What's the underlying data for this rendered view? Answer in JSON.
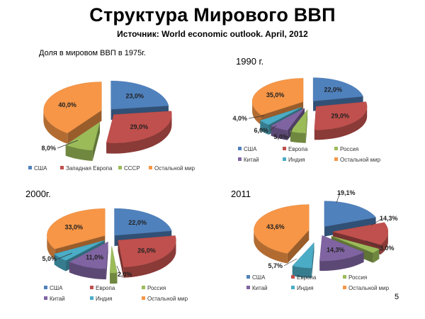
{
  "title": "Структура Мирового ВВП",
  "subtitle": "Источник: World economic outlook. April, 2012",
  "page_number": "5",
  "colors": {
    "usa": "#4F81BD",
    "europe": "#C0504D",
    "russia": "#9BBB59",
    "china": "#8064A2",
    "india": "#4BACC6",
    "rest": "#F79646"
  },
  "panels": [
    {
      "label": "Доля в мировом ВВП в 1975г."
    },
    {
      "label": "1990 г."
    },
    {
      "label": "2000г."
    },
    {
      "label": "2011"
    }
  ],
  "chart_data": [
    {
      "type": "pie",
      "title": "Доля в мировом ВВП в 1975г.",
      "categories": [
        "США",
        "Западная Европа",
        "СССР",
        "Остальной мир"
      ],
      "values": [
        23.0,
        29.0,
        8.0,
        40.0
      ],
      "data_labels": [
        "23,0%",
        "29,0%",
        "8,0%",
        "40,0%"
      ],
      "legend": "bottom"
    },
    {
      "type": "pie",
      "title": "1990 г.",
      "categories": [
        "США",
        "Европа",
        "Россия",
        "Китай",
        "Индия",
        "Остальной мир"
      ],
      "values": [
        22.0,
        29.0,
        5.0,
        6.0,
        4.0,
        35.0
      ],
      "data_labels": [
        "22,0%",
        "29,0%",
        "5,0%",
        "6,0%",
        "4,0%",
        "35,0%"
      ],
      "legend": "bottom"
    },
    {
      "type": "pie",
      "title": "2000г.",
      "categories": [
        "США",
        "Европа",
        "Россия",
        "Китай",
        "Индия",
        "Остальной мир"
      ],
      "values": [
        22.0,
        26.0,
        2.0,
        11.0,
        5.0,
        33.0
      ],
      "data_labels": [
        "22,0%",
        "26,0%",
        "2,0%",
        "11,0%",
        "5,0%",
        "33,0%"
      ],
      "legend": "bottom"
    },
    {
      "type": "pie",
      "title": "2011",
      "categories": [
        "США",
        "Европа",
        "Россия",
        "Китай",
        "Индия",
        "Остальной мир"
      ],
      "values": [
        19.1,
        14.3,
        3.0,
        14.3,
        5.7,
        43.6
      ],
      "data_labels": [
        "19,1%",
        "14,3%",
        "3,0%",
        "14,3%",
        "5,7%",
        "43,6%"
      ],
      "legend": "bottom"
    }
  ]
}
